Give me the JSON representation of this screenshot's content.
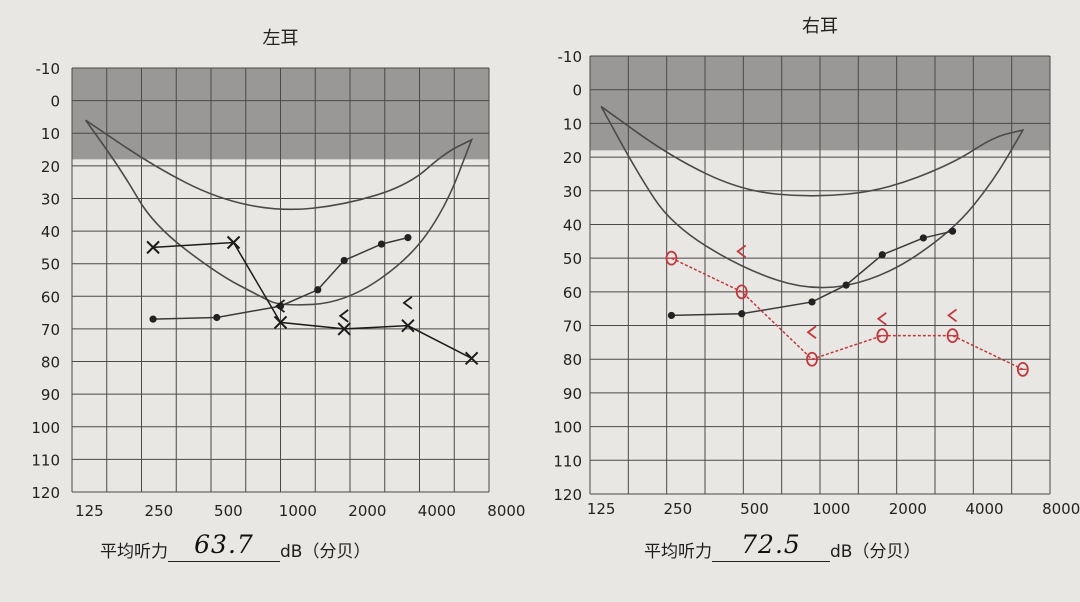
{
  "colors": {
    "background": "#e9e7e3",
    "grid": "#4a4a4a",
    "shaded_band": "#9a9896",
    "banana_curve": "#4a4a4a",
    "left_marks": "#1b1b1b",
    "right_marks": "#c2383f"
  },
  "y_ticks": [
    "-10",
    "0",
    "10",
    "20",
    "30",
    "40",
    "50",
    "60",
    "70",
    "80",
    "90",
    "100",
    "110",
    "120"
  ],
  "x_ticks": [
    "125",
    "250",
    "500",
    "1000",
    "2000",
    "4000",
    "8000"
  ],
  "avg_label": "平均听力",
  "unit_label": "dB（分贝）",
  "chart_data": [
    {
      "type": "line",
      "title": "左耳",
      "xscale": "log",
      "yinverted": true,
      "ylim": [
        -10,
        120
      ],
      "shaded_band": [
        -10,
        18
      ],
      "average": "63.7",
      "speech_banana": {
        "upper": [
          [
            120,
            6
          ],
          [
            250,
            20
          ],
          [
            500,
            30
          ],
          [
            1000,
            34
          ],
          [
            2000,
            32
          ],
          [
            4000,
            26
          ],
          [
            6000,
            16
          ],
          [
            8000,
            12
          ]
        ],
        "lower": [
          [
            120,
            6
          ],
          [
            180,
            22
          ],
          [
            250,
            38
          ],
          [
            500,
            53
          ],
          [
            800,
            60
          ],
          [
            1000,
            63
          ],
          [
            2000,
            62
          ],
          [
            4000,
            49
          ],
          [
            6000,
            33
          ],
          [
            8000,
            12
          ]
        ]
      },
      "reference_curve": [
        [
          250,
          67
        ],
        [
          500,
          66.5
        ],
        [
          1000,
          63
        ],
        [
          1500,
          58
        ],
        [
          2000,
          49
        ],
        [
          3000,
          44
        ],
        [
          4000,
          42
        ]
      ],
      "series": [
        {
          "marker": "x",
          "points": [
            [
              250,
              45
            ],
            [
              600,
              43.5
            ],
            [
              1000,
              68
            ],
            [
              2000,
              70
            ],
            [
              4000,
              69
            ],
            [
              8000,
              79
            ]
          ]
        },
        {
          "marker": "<",
          "points": [
            [
              1000,
              63
            ],
            [
              2000,
              66
            ],
            [
              4000,
              62
            ]
          ]
        }
      ]
    },
    {
      "type": "line",
      "title": "右耳",
      "xscale": "log",
      "yinverted": true,
      "ylim": [
        -10,
        120
      ],
      "shaded_band": [
        -10,
        18
      ],
      "average": "72.5",
      "speech_banana": {
        "upper": [
          [
            125,
            5
          ],
          [
            250,
            20
          ],
          [
            500,
            30
          ],
          [
            1000,
            32
          ],
          [
            2000,
            30
          ],
          [
            4000,
            22
          ],
          [
            6000,
            14
          ],
          [
            8000,
            12
          ]
        ],
        "lower": [
          [
            125,
            5
          ],
          [
            180,
            25
          ],
          [
            250,
            40
          ],
          [
            500,
            53
          ],
          [
            1000,
            60
          ],
          [
            2000,
            56
          ],
          [
            4000,
            42
          ],
          [
            6000,
            27
          ],
          [
            8000,
            12
          ]
        ]
      },
      "reference_curve": [
        [
          250,
          67
        ],
        [
          500,
          66.5
        ],
        [
          1000,
          63
        ],
        [
          1400,
          58
        ],
        [
          2000,
          49
        ],
        [
          3000,
          44
        ],
        [
          4000,
          42
        ]
      ],
      "series": [
        {
          "marker": "o",
          "points": [
            [
              250,
              50
            ],
            [
              500,
              60
            ],
            [
              1000,
              80
            ],
            [
              2000,
              73
            ],
            [
              4000,
              73
            ],
            [
              8000,
              83
            ]
          ]
        },
        {
          "marker": "<",
          "points": [
            [
              500,
              48
            ],
            [
              1000,
              72
            ],
            [
              2000,
              68
            ],
            [
              4000,
              67
            ]
          ]
        }
      ]
    }
  ]
}
